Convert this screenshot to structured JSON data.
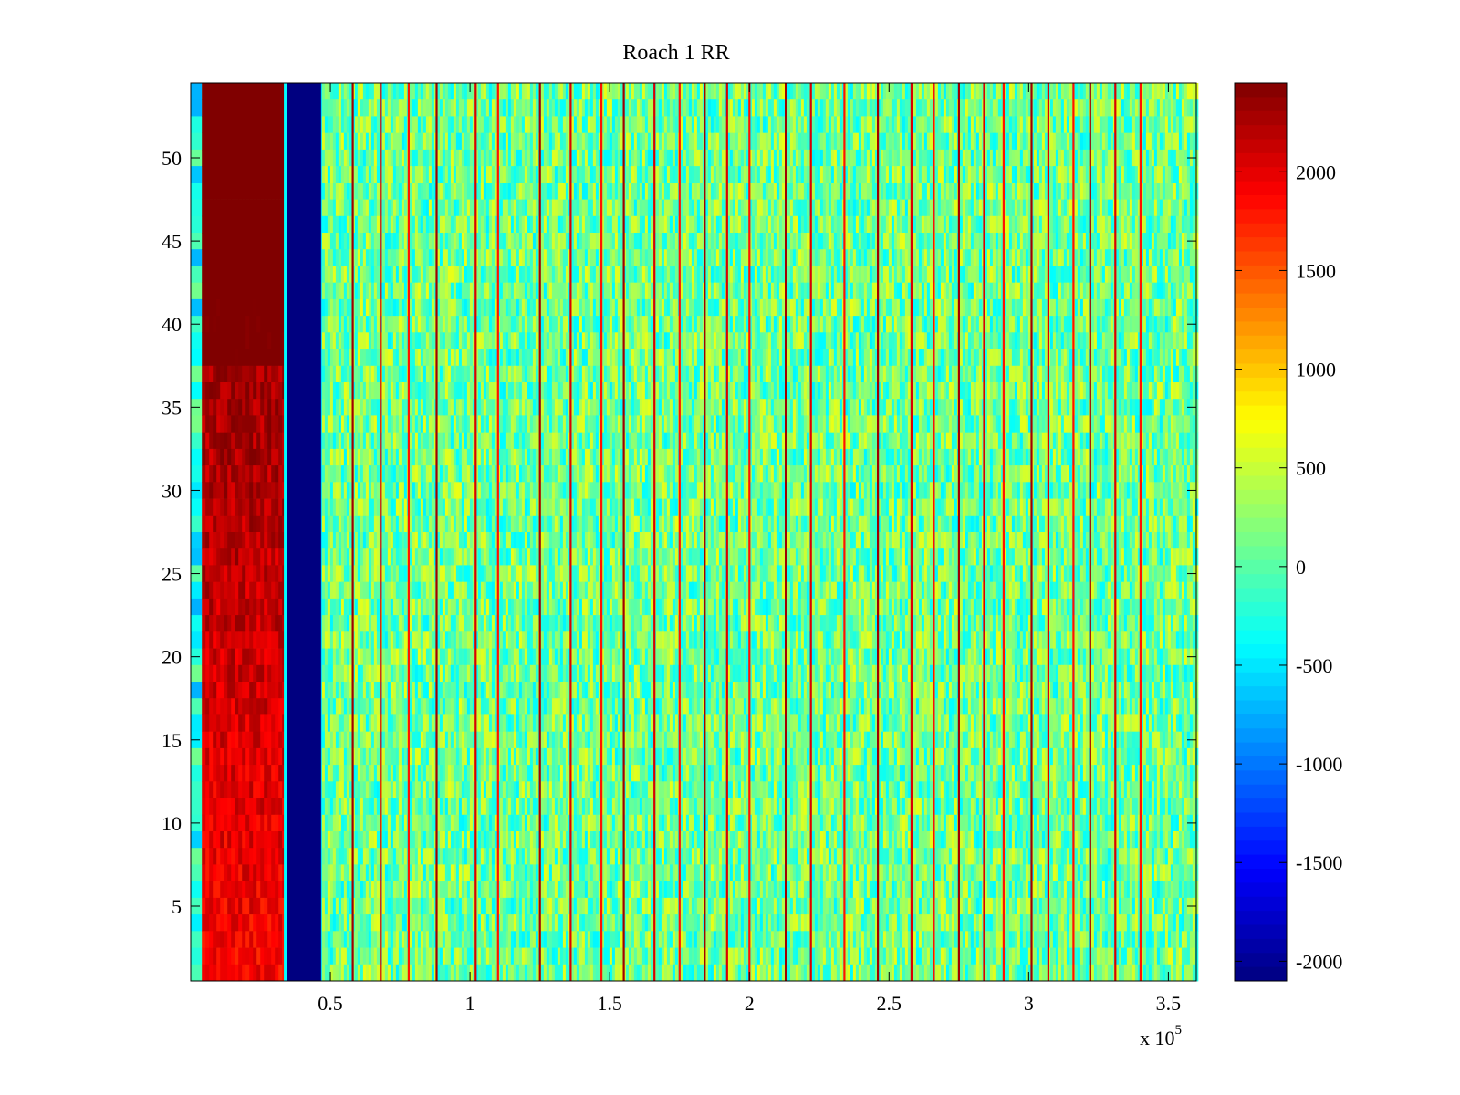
{
  "chart_data": {
    "type": "heatmap",
    "title": "Roach 1 RR",
    "xlabel": "",
    "ylabel": "",
    "x_multiplier_label": "x 10",
    "x_multiplier_exponent": "5",
    "xlim": [
      0,
      3.6
    ],
    "ylim": [
      0.5,
      54.5
    ],
    "n_rows": 54,
    "x_ticks": [
      {
        "value": 0.5,
        "label": "0.5"
      },
      {
        "value": 1,
        "label": "1"
      },
      {
        "value": 1.5,
        "label": "1.5"
      },
      {
        "value": 2,
        "label": "2"
      },
      {
        "value": 2.5,
        "label": "2.5"
      },
      {
        "value": 3,
        "label": "3"
      },
      {
        "value": 3.5,
        "label": "3.5"
      }
    ],
    "y_ticks": [
      {
        "value": 5,
        "label": "5"
      },
      {
        "value": 10,
        "label": "10"
      },
      {
        "value": 15,
        "label": "15"
      },
      {
        "value": 20,
        "label": "20"
      },
      {
        "value": 25,
        "label": "25"
      },
      {
        "value": 30,
        "label": "30"
      },
      {
        "value": 35,
        "label": "35"
      },
      {
        "value": 40,
        "label": "40"
      },
      {
        "value": 45,
        "label": "45"
      },
      {
        "value": 50,
        "label": "50"
      }
    ],
    "colormap": "jet",
    "clim": [
      -2100,
      2450
    ],
    "colorbar_ticks": [
      {
        "value": 2000,
        "label": "2000"
      },
      {
        "value": 1500,
        "label": "1500"
      },
      {
        "value": 1000,
        "label": "1000"
      },
      {
        "value": 500,
        "label": "500"
      },
      {
        "value": 0,
        "label": "0"
      },
      {
        "value": -500,
        "label": "-500"
      },
      {
        "value": -1000,
        "label": "-1000"
      },
      {
        "value": -1500,
        "label": "-1500"
      },
      {
        "value": -2000,
        "label": "-2000"
      }
    ],
    "regions": [
      {
        "name": "edge-strip",
        "x_start": 0.0,
        "x_end": 0.04,
        "value_top": -300,
        "value_bottom": -300
      },
      {
        "name": "high-band",
        "x_start": 0.04,
        "x_end": 0.34,
        "value_top": 2450,
        "value_bottom": 1850
      },
      {
        "name": "low-band",
        "x_start": 0.34,
        "x_end": 0.47,
        "value": -2100
      },
      {
        "name": "background",
        "x_start": 0.47,
        "x_end": 3.6,
        "value": 100
      }
    ],
    "stripe_x": [
      0.58,
      0.68,
      0.78,
      0.88,
      1.02,
      1.1,
      1.25,
      1.36,
      1.47,
      1.55,
      1.66,
      1.75,
      1.84,
      1.92,
      2.0,
      2.13,
      2.22,
      2.34,
      2.46,
      2.58,
      2.66,
      2.75,
      2.84,
      2.91,
      3.01,
      3.07,
      3.16,
      3.22,
      3.31,
      3.4
    ],
    "stripe_value": 2300
  }
}
